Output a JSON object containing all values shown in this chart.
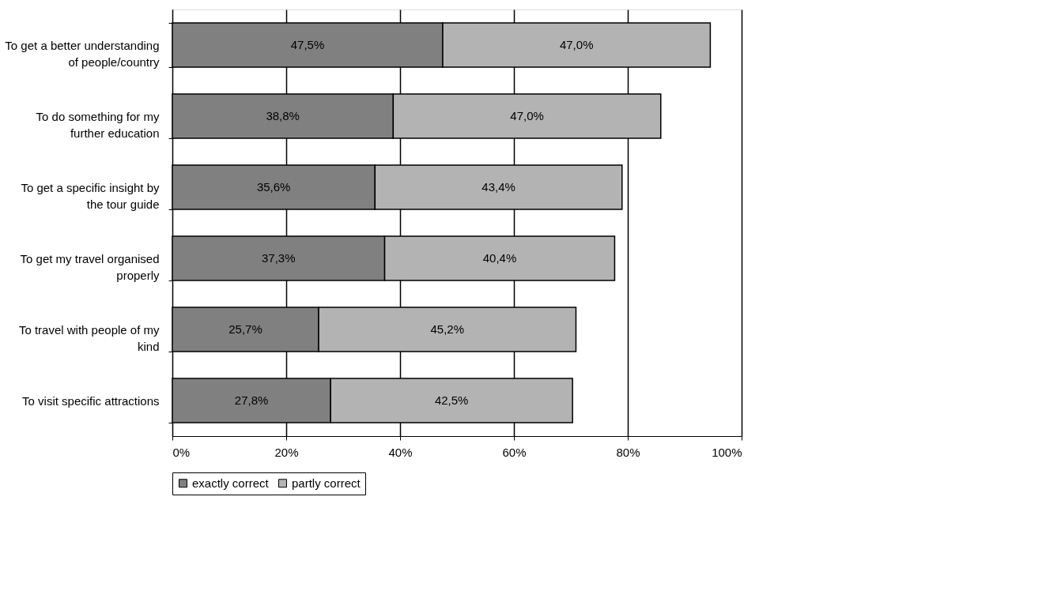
{
  "chart_data": {
    "type": "bar",
    "orientation": "horizontal",
    "stacked": true,
    "categories": [
      "To get a better understanding of people/country",
      "To do something for my further education",
      "To get a specific insight by the tour guide",
      "To get my travel organised properly",
      "To travel with people of my kind",
      "To visit specific attractions"
    ],
    "series": [
      {
        "name": "exactly correct",
        "color": "#808080",
        "values": [
          47.5,
          38.8,
          35.6,
          37.3,
          25.7,
          27.8
        ],
        "value_labels": [
          "47,5%",
          "38,8%",
          "35,6%",
          "37,3%",
          "25,7%",
          "27,8%"
        ]
      },
      {
        "name": "partly correct",
        "color": "#b3b3b3",
        "values": [
          47.0,
          47.0,
          43.4,
          40.4,
          45.2,
          42.5
        ],
        "value_labels": [
          "47,0%",
          "47,0%",
          "43,4%",
          "40,4%",
          "45,2%",
          "42,5%"
        ]
      }
    ],
    "xlim": [
      0,
      100
    ],
    "xticks": [
      {
        "value": 0,
        "label": "0%"
      },
      {
        "value": 20,
        "label": "20%"
      },
      {
        "value": 40,
        "label": "40%"
      },
      {
        "value": 60,
        "label": "60%"
      },
      {
        "value": 80,
        "label": "80%"
      },
      {
        "value": 100,
        "label": "100%"
      }
    ],
    "grid": "x",
    "legend": "bottom"
  }
}
